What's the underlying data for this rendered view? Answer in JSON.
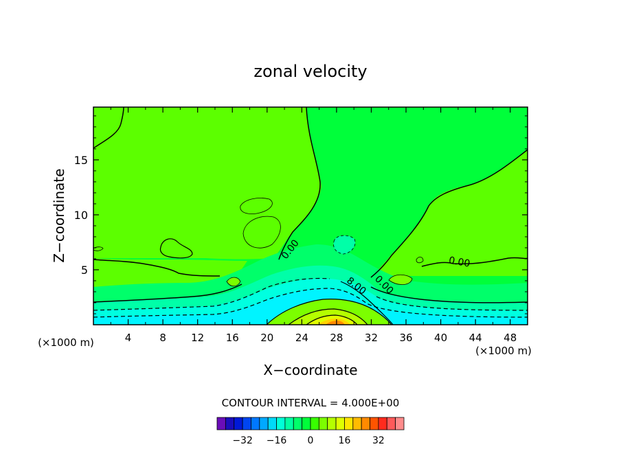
{
  "chart_data": {
    "type": "heatmap",
    "title": "zonal velocity",
    "xlabel": "X−coordinate",
    "ylabel": "Z−coordinate",
    "x_unit_left": "(×1000 m)",
    "x_unit_right": "(×1000 m)",
    "xlim": [
      0,
      50
    ],
    "ylim": [
      0,
      19.8
    ],
    "x_ticks": [
      "4",
      "8",
      "12",
      "16",
      "20",
      "24",
      "28",
      "32",
      "36",
      "40",
      "44",
      "48"
    ],
    "y_ticks": [
      "5",
      "10",
      "15"
    ],
    "contour_interval_label": "CONTOUR INTERVAL = 4.000E+00",
    "contour_interval": 4,
    "contour_labels": [
      "0.00",
      "0.00",
      "0.00",
      "0.00",
      "8.00"
    ],
    "colorbar": {
      "min": -36,
      "max": 36,
      "step": 4,
      "tick_labels": [
        "−32",
        "−16",
        "0",
        "16",
        "32"
      ],
      "colors": [
        "#6a0db8",
        "#1a0dbb",
        "#0019d7",
        "#0045f0",
        "#0078ff",
        "#00a9ff",
        "#00d9f8",
        "#00ffd8",
        "#00ffa3",
        "#00ff6a",
        "#00ff3a",
        "#38ff00",
        "#7cff00",
        "#b5ff00",
        "#e0ff00",
        "#ffe600",
        "#ffbb00",
        "#ff8a00",
        "#ff5400",
        "#ff2b1e",
        "#ff5a5a",
        "#ff8c8c"
      ]
    },
    "field_regions": [
      {
        "level": "0 to 4",
        "color": "#00ff3a",
        "area": "upper middle and right"
      },
      {
        "level": "-4 to 0",
        "color": "#5cff00",
        "area": "upper left and lateral bands"
      },
      {
        "level": "-8 to -4",
        "color": "#00ff6a",
        "area": "mid layer"
      },
      {
        "level": "-12 to -8",
        "color": "#00ffa8",
        "area": "lower layer"
      },
      {
        "level": "-16 to -12",
        "color": "#00ffe0",
        "area": "near surface"
      },
      {
        "level": "-20 to -16",
        "color": "#00f4ff",
        "area": "surface core"
      },
      {
        "level": "4 to 16",
        "color": "#b5ff00",
        "area": "surface jet near x=28"
      },
      {
        "level": "16 to 24",
        "color": "#ff8a00",
        "area": "jet core near x=28, z=0"
      }
    ]
  }
}
